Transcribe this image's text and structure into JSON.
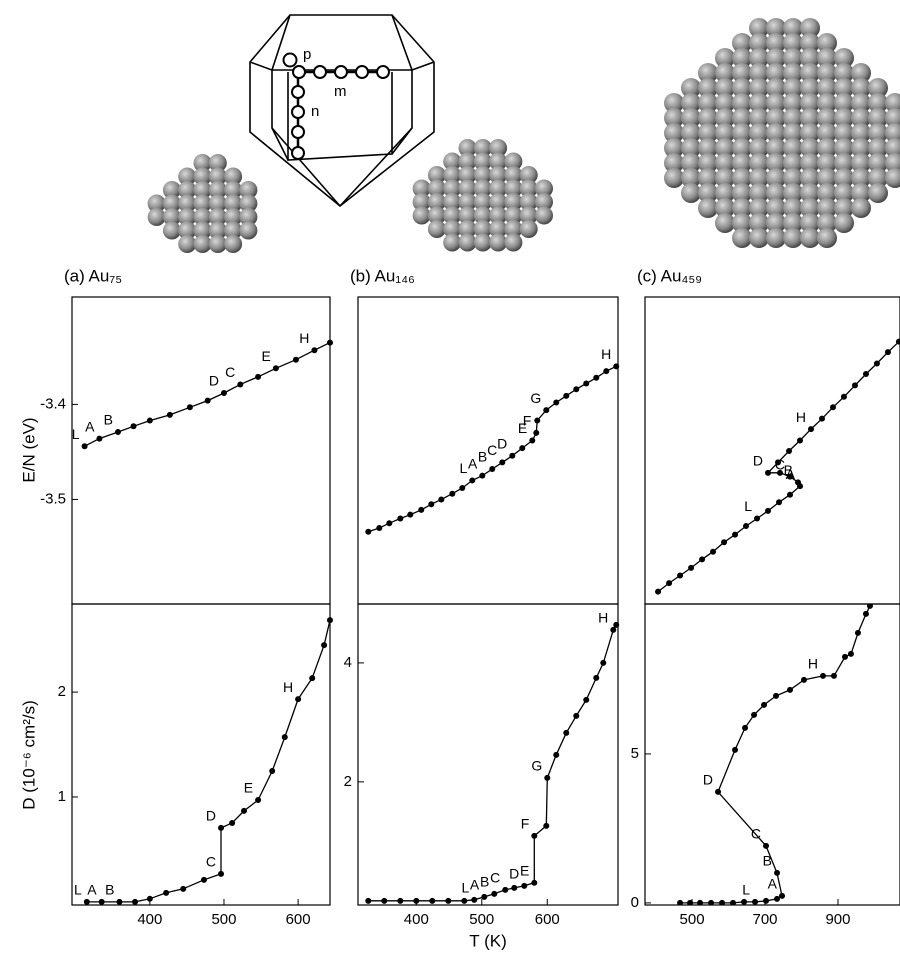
{
  "figure": {
    "xlabel": "T (K)",
    "ylabel_top": "E/N (eV)",
    "ylabel_bottom": "D (10⁻⁶ cm²/s)"
  },
  "diagram": {
    "labels": [
      "p",
      "m",
      "n"
    ]
  },
  "chart_data": [
    {
      "type": "line",
      "title": "(a) Au₇₅",
      "color": "#000000",
      "x": [
        312,
        332,
        357,
        378,
        400,
        427,
        454,
        478,
        500,
        522,
        546,
        570,
        597,
        622,
        643
      ],
      "values": [
        -3.444,
        -3.436,
        -3.429,
        -3.423,
        -3.417,
        -3.411,
        -3.403,
        -3.396,
        -3.388,
        -3.379,
        -3.371,
        -3.362,
        -3.353,
        -3.343,
        -3.335
      ],
      "point_labels": [
        "L",
        "A",
        "B",
        null,
        null,
        null,
        null,
        null,
        "D",
        "C",
        null,
        "E",
        null,
        "H",
        null
      ],
      "xlim": [
        295,
        643
      ],
      "ylim": [
        -3.61,
        -3.287
      ],
      "yticks": [
        -3.4,
        -3.5
      ]
    },
    {
      "type": "line",
      "color": "#000000",
      "x": [
        315,
        335,
        359,
        380,
        400,
        422,
        445,
        473,
        496,
        496,
        511,
        527,
        546,
        565,
        582,
        600,
        619,
        635,
        643
      ],
      "values": [
        0,
        0,
        0,
        0,
        0.029,
        0.086,
        0.124,
        0.21,
        0.267,
        0.705,
        0.752,
        0.867,
        0.971,
        1.248,
        1.571,
        1.933,
        2.133,
        2.448,
        2.686
      ],
      "point_labels": [
        "L",
        "A",
        "B",
        null,
        null,
        null,
        null,
        null,
        "C",
        "D",
        null,
        null,
        "E",
        null,
        null,
        "H",
        null,
        null,
        null
      ],
      "xlim": [
        295,
        643
      ],
      "ylim": [
        -0.03,
        2.84
      ],
      "xticks": [
        400,
        500,
        600
      ],
      "yticks": [
        1,
        2
      ]
    },
    {
      "type": "line",
      "title": "(b) Au₁₄₆",
      "color": "#000000",
      "x": [
        326.7,
        343.5,
        358.8,
        375.6,
        390.8,
        407.6,
        422.9,
        438.2,
        455,
        470.2,
        485.5,
        500.8,
        516,
        531.3,
        546.6,
        561.8,
        577.1,
        583.2,
        584.7,
        598.5,
        613.7,
        629,
        644.3,
        659.5,
        674.8,
        690.1,
        705.3
      ],
      "values": [
        -3.534,
        -3.53,
        -3.525,
        -3.52,
        -3.516,
        -3.511,
        -3.505,
        -3.5,
        -3.494,
        -3.488,
        -3.48,
        -3.475,
        -3.468,
        -3.461,
        -3.454,
        -3.446,
        -3.438,
        -3.43,
        -3.417,
        -3.406,
        -3.398,
        -3.391,
        -3.384,
        -3.378,
        -3.372,
        -3.365,
        -3.36
      ],
      "point_labels": [
        null,
        null,
        null,
        null,
        null,
        null,
        null,
        null,
        null,
        null,
        "L",
        "A",
        "B",
        "C",
        "D",
        null,
        "E",
        "F",
        null,
        "G",
        null,
        null,
        null,
        null,
        null,
        null,
        "H"
      ],
      "xlim": [
        311,
        708
      ],
      "ylim": [
        -3.61,
        -3.287
      ]
    },
    {
      "type": "line",
      "color": "#000000",
      "x": [
        326.7,
        351.1,
        375.6,
        400,
        424.4,
        448.9,
        473.3,
        488.5,
        503.8,
        519.1,
        535.9,
        549.6,
        564.9,
        580.2,
        580.2,
        598.5,
        600,
        613.7,
        629,
        644.3,
        659.5,
        674.8,
        685.5,
        700.8,
        705.3
      ],
      "values": [
        0,
        0,
        0,
        0,
        0,
        0,
        0,
        0.017,
        0.067,
        0.118,
        0.185,
        0.218,
        0.252,
        0.303,
        1.092,
        1.261,
        2.067,
        2.454,
        2.824,
        3.11,
        3.378,
        3.748,
        4.0,
        4.555,
        4.639
      ],
      "point_labels": [
        null,
        null,
        null,
        null,
        null,
        null,
        null,
        "L",
        "A",
        "B",
        "C",
        null,
        "D",
        "E",
        "F",
        null,
        "G",
        null,
        null,
        null,
        null,
        null,
        null,
        "H",
        null
      ],
      "xlim": [
        311,
        708
      ],
      "ylim": [
        -0.07,
        4.99
      ],
      "xticks": [
        400,
        500,
        600
      ],
      "yticks": [
        2,
        4
      ]
    },
    {
      "type": "line",
      "title": "(c) Au₄₅₉",
      "color": "#000000",
      "x": [
        406.8,
        437,
        467.1,
        497.3,
        527.4,
        557.5,
        587.7,
        617.8,
        647.9,
        678.1,
        708.2,
        738.4,
        768.5,
        795.9,
        790.4,
        768.5,
        741.1,
        708.2,
        735.6,
        765.8,
        795.9,
        826,
        856.2,
        886.3,
        916.4,
        946.6,
        976.7,
        1006.8,
        1037,
        1067.1
      ],
      "values": [
        -3.597,
        -3.588,
        -3.58,
        -3.572,
        -3.563,
        -3.555,
        -3.545,
        -3.537,
        -3.528,
        -3.52,
        -3.512,
        -3.503,
        -3.495,
        -3.486,
        -3.482,
        -3.476,
        -3.472,
        -3.472,
        -3.461,
        -3.449,
        -3.438,
        -3.426,
        -3.415,
        -3.403,
        -3.392,
        -3.38,
        -3.368,
        -3.357,
        -3.345,
        -3.334
      ],
      "point_labels": [
        null,
        null,
        null,
        null,
        null,
        null,
        null,
        null,
        null,
        "L",
        null,
        null,
        null,
        "A",
        "B",
        "C",
        null,
        "D",
        null,
        null,
        null,
        "H",
        null,
        null,
        null,
        null,
        null,
        null,
        null,
        null
      ],
      "xlim": [
        371,
        1070
      ],
      "ylim": [
        -3.61,
        -3.287
      ]
    },
    {
      "type": "line",
      "color": "#000000",
      "x": [
        467.1,
        494.5,
        521.9,
        552.1,
        582.2,
        612.3,
        642.5,
        672.6,
        702.7,
        732.9,
        746.6,
        732.9,
        702.7,
        571.2,
        617.8,
        645.2,
        669.9,
        697.3,
        730.1,
        768.5,
        806.8,
        858.9,
        889,
        919.2,
        935.6,
        954.8,
        976.7,
        987.7
      ],
      "values": [
        0,
        0,
        0,
        0,
        0,
        0,
        0.034,
        0.034,
        0.067,
        0.134,
        0.235,
        1.007,
        1.913,
        3.725,
        5.134,
        5.872,
        6.309,
        6.644,
        6.946,
        7.148,
        7.483,
        7.617,
        7.617,
        8.255,
        8.356,
        9.06,
        9.698,
        9.966
      ],
      "point_labels": [
        null,
        null,
        null,
        null,
        null,
        null,
        null,
        "L",
        null,
        null,
        "A",
        "B",
        "C",
        "D",
        null,
        null,
        null,
        null,
        null,
        null,
        null,
        "H",
        null,
        null,
        null,
        null,
        null,
        null
      ],
      "xlim": [
        371,
        1070
      ],
      "ylim": [
        -0.07,
        10.03
      ],
      "xticks": [
        500,
        700,
        900
      ],
      "yticks": [
        0,
        5
      ]
    }
  ]
}
